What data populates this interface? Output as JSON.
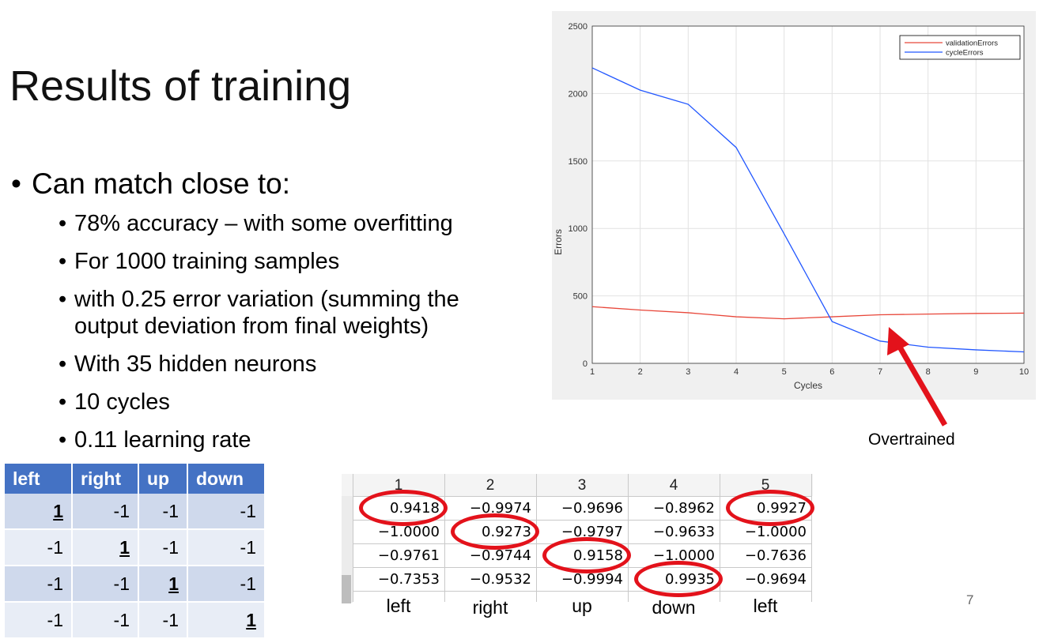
{
  "slide": {
    "title": "Results of training",
    "bullet_main": "Can match close to:",
    "sub_bullets": [
      "78% accuracy – with some overfitting",
      "For 1000 training samples",
      "with 0.25 error variation (summing the",
      "With 35 hidden neurons",
      "10 cycles",
      "0.11 learning rate"
    ],
    "sub_bullet_3_continuation": "output deviation from final weights)",
    "annotation": "Overtrained",
    "page_number": "7"
  },
  "chart_data": {
    "type": "line",
    "xlabel": "Cycles",
    "ylabel": "Errors",
    "x": [
      1,
      2,
      3,
      4,
      5,
      6,
      7,
      8,
      9,
      10
    ],
    "xlim": [
      1,
      10
    ],
    "ylim": [
      0,
      2500
    ],
    "x_ticks": [
      "1",
      "2",
      "3",
      "4",
      "5",
      "6",
      "7",
      "8",
      "9",
      "10"
    ],
    "y_ticks": [
      "0",
      "500",
      "1000",
      "1500",
      "2000",
      "2500"
    ],
    "grid": true,
    "legend_position": "top-right",
    "series": [
      {
        "name": "validationErrors",
        "color": "#e8473a",
        "values": [
          420,
          395,
          375,
          345,
          330,
          345,
          360,
          365,
          370,
          372
        ]
      },
      {
        "name": "cycleErrors",
        "color": "#2257ff",
        "values": [
          2190,
          2025,
          1920,
          1600,
          960,
          310,
          165,
          120,
          100,
          85
        ]
      }
    ]
  },
  "label_table": {
    "headers": [
      "left",
      "right",
      "up",
      "down"
    ],
    "rows": [
      [
        "1",
        "-1",
        "-1",
        "-1"
      ],
      [
        "-1",
        "1",
        "-1",
        "-1"
      ],
      [
        "-1",
        "-1",
        "1",
        "-1"
      ],
      [
        "-1",
        "-1",
        "-1",
        "1"
      ]
    ],
    "emphasis_col": [
      0,
      1,
      2,
      3
    ]
  },
  "output_table": {
    "headers": [
      "1",
      "2",
      "3",
      "4",
      "5"
    ],
    "rows": [
      [
        "0.9418",
        "−0.9974",
        "−0.9696",
        "−0.8962",
        "0.9927"
      ],
      [
        "−1.0000",
        "0.9273",
        "−0.9797",
        "−0.9633",
        "−1.0000"
      ],
      [
        "−0.9761",
        "−0.9744",
        "0.9158",
        "−1.0000",
        "−0.7636"
      ],
      [
        "−0.7353",
        "−0.9532",
        "−0.9994",
        "0.9935",
        "−0.9694"
      ]
    ],
    "footer": [
      "left",
      "right",
      "up",
      "down",
      "left"
    ],
    "circled": [
      [
        0,
        0
      ],
      [
        1,
        1
      ],
      [
        2,
        2
      ],
      [
        3,
        3
      ],
      [
        0,
        4
      ]
    ],
    "circle_color": "#e3121b"
  }
}
